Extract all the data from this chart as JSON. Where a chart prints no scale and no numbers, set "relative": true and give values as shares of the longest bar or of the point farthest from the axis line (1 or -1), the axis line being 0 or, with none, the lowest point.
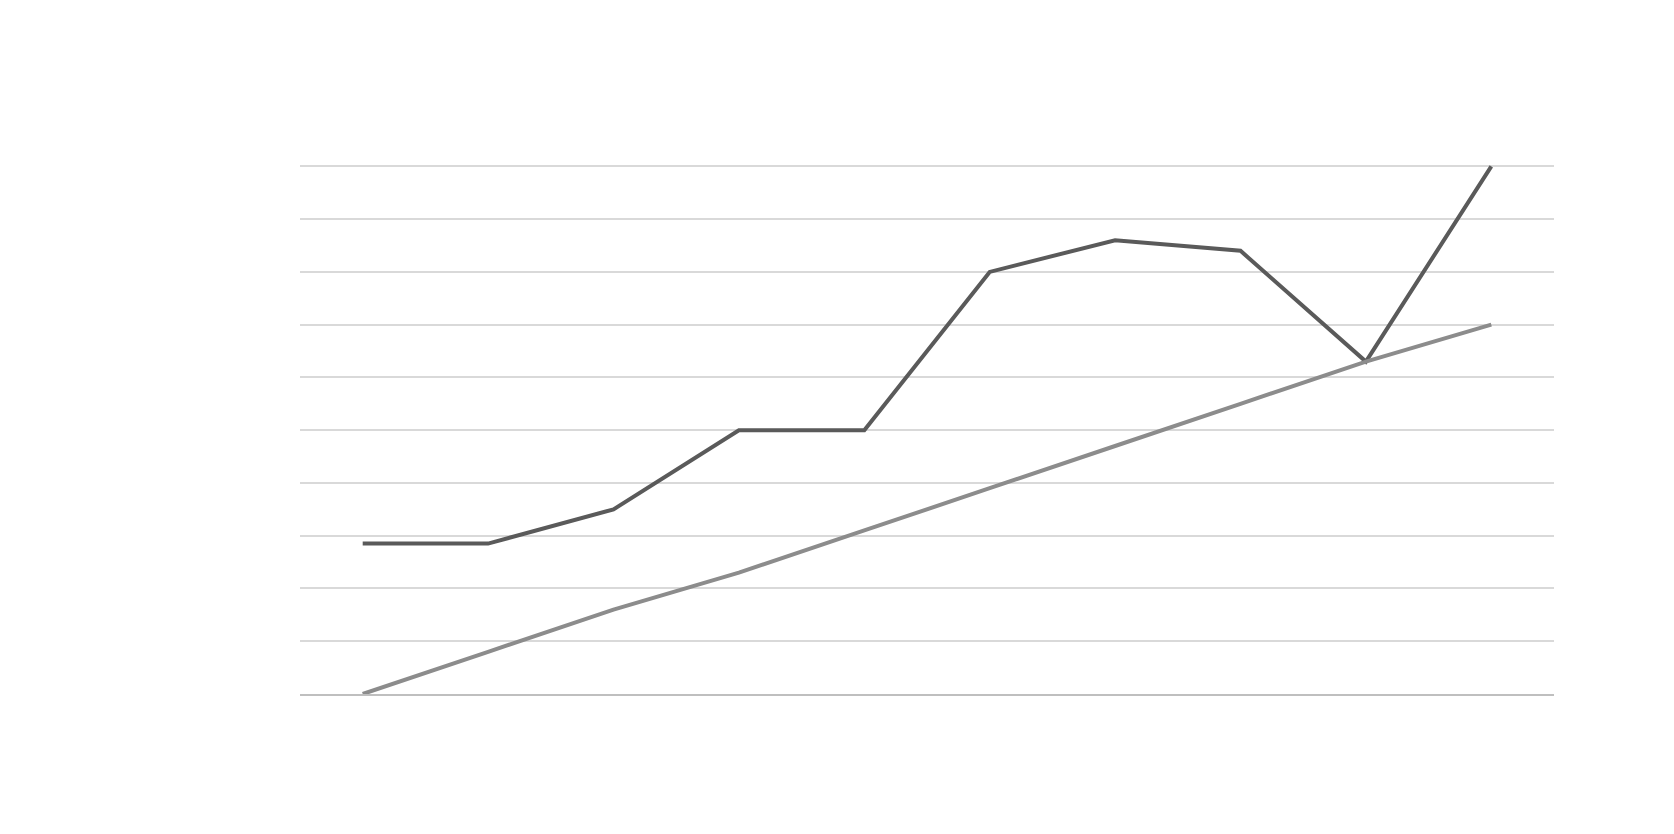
{
  "chart_data": {
    "type": "line",
    "relative": true,
    "grid": "y",
    "categories": [
      null,
      null,
      null,
      null,
      null,
      null,
      null,
      null,
      null,
      null
    ],
    "series": [
      {
        "color": "#5a5a5a",
        "values": [
          0.285,
          0.285,
          0.35,
          0.5,
          0.5,
          0.8,
          0.86,
          0.84,
          0.63,
          1.0
        ]
      },
      {
        "color": "#8c8c8c",
        "values": [
          0,
          0.08,
          0.16,
          0.23,
          0.31,
          0.39,
          0.47,
          0.55,
          0.63,
          0.7
        ]
      }
    ]
  }
}
